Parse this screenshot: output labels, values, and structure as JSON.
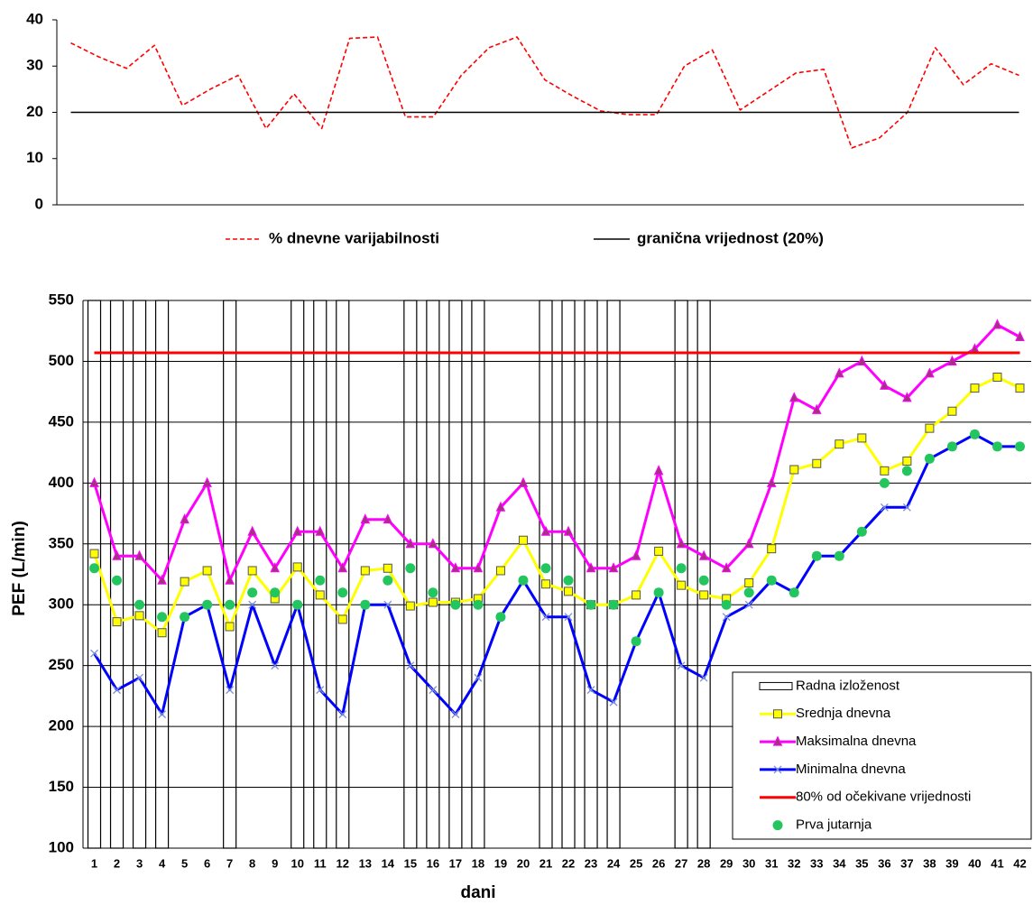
{
  "chart_data": [
    {
      "type": "line",
      "ylim": [
        0,
        40
      ],
      "yticks": [
        0,
        10,
        20,
        30,
        40
      ],
      "grid": false,
      "legend": "bottom",
      "series": [
        {
          "name": "% dnevne varijabilnosti",
          "color": "#ff0000",
          "dash": true,
          "values": [
            35,
            32,
            29.5,
            34.5,
            21.5,
            25,
            28,
            16.5,
            24,
            16.5,
            36,
            36.3,
            19,
            19,
            28,
            34,
            36.3,
            27,
            23.5,
            20.3,
            19.5,
            19.5,
            30,
            33.5,
            20.5,
            24.5,
            28.5,
            29.3,
            12.3,
            14.5,
            20,
            34,
            26,
            30.5,
            28
          ]
        },
        {
          "name": "granična vrijednost (20%)",
          "color": "#000000",
          "dash": false,
          "values": [
            20,
            20,
            20,
            20,
            20,
            20,
            20,
            20,
            20,
            20,
            20,
            20,
            20,
            20,
            20,
            20,
            20,
            20,
            20,
            20,
            20,
            20,
            20,
            20,
            20,
            20,
            20,
            20,
            20,
            20,
            20,
            20,
            20,
            20,
            20
          ]
        }
      ]
    },
    {
      "type": "line",
      "x_label": "dani",
      "y_label": "PEF (L/min)",
      "ylim": [
        100,
        550
      ],
      "yticks": [
        100,
        150,
        200,
        250,
        300,
        350,
        400,
        450,
        500,
        550
      ],
      "grid": true,
      "legend": "lower right",
      "categories": [
        "1",
        "2",
        "3",
        "4",
        "5",
        "6",
        "7",
        "8",
        "9",
        "10",
        "11",
        "12",
        "13",
        "14",
        "15",
        "16",
        "17",
        "18",
        "19",
        "20",
        "21",
        "22",
        "23",
        "24",
        "25",
        "26",
        "27",
        "28",
        "29",
        "30",
        "31",
        "32",
        "33",
        "34",
        "35",
        "36",
        "37",
        "38",
        "39",
        "40",
        "41",
        "42"
      ],
      "series": [
        {
          "name": "Radna izloženost",
          "type": "bar",
          "color": "#000000",
          "values": [
            550,
            550,
            550,
            550,
            null,
            null,
            550,
            null,
            null,
            550,
            550,
            550,
            null,
            null,
            550,
            550,
            550,
            550,
            null,
            null,
            550,
            550,
            550,
            550,
            null,
            null,
            550,
            550,
            null,
            null,
            null,
            null,
            null,
            null,
            null,
            null,
            null,
            null,
            null,
            null,
            null,
            null
          ]
        },
        {
          "name": "Srednja dnevna",
          "type": "line",
          "color": "#ffff00",
          "marker": "square",
          "values": [
            342,
            286,
            291,
            277,
            319,
            328,
            282,
            328,
            305,
            331,
            308,
            288,
            328,
            330,
            299,
            302,
            302,
            305,
            328,
            353,
            317,
            311,
            300,
            300,
            308,
            344,
            316,
            308,
            305,
            318,
            346,
            411,
            416,
            432,
            437,
            410,
            418,
            445,
            459,
            478,
            487,
            478
          ]
        },
        {
          "name": "Maksimalna dnevna",
          "type": "line",
          "color": "#ff00ff",
          "marker": "triangle",
          "values": [
            400,
            340,
            340,
            320,
            370,
            400,
            320,
            360,
            330,
            360,
            360,
            330,
            370,
            370,
            350,
            350,
            330,
            330,
            380,
            400,
            360,
            360,
            330,
            330,
            340,
            410,
            350,
            340,
            330,
            350,
            400,
            470,
            460,
            490,
            500,
            480,
            470,
            490,
            500,
            510,
            530,
            520
          ]
        },
        {
          "name": "Minimalna dnevna",
          "type": "line",
          "color": "#0000ff",
          "marker": "x",
          "values": [
            260,
            230,
            240,
            210,
            290,
            300,
            230,
            300,
            250,
            300,
            230,
            210,
            300,
            300,
            250,
            230,
            210,
            240,
            290,
            320,
            290,
            290,
            230,
            220,
            270,
            310,
            250,
            240,
            290,
            300,
            320,
            310,
            340,
            340,
            360,
            380,
            380,
            420,
            430,
            440,
            430,
            430
          ]
        },
        {
          "name": "80% od očekivane vrijednosti",
          "type": "line",
          "color": "#ff0000",
          "values": [
            507,
            507,
            507,
            507,
            507,
            507,
            507,
            507,
            507,
            507,
            507,
            507,
            507,
            507,
            507,
            507,
            507,
            507,
            507,
            507,
            507,
            507,
            507,
            507,
            507,
            507,
            507,
            507,
            507,
            507,
            507,
            507,
            507,
            507,
            507,
            507,
            507,
            507,
            507,
            507,
            507,
            507
          ]
        },
        {
          "name": "Prva jutarnja",
          "type": "scatter",
          "color": "#22c55e",
          "marker": "circle",
          "values": [
            330,
            320,
            300,
            290,
            290,
            300,
            300,
            310,
            310,
            300,
            320,
            310,
            300,
            320,
            330,
            310,
            300,
            300,
            290,
            320,
            330,
            320,
            300,
            300,
            270,
            310,
            330,
            320,
            300,
            310,
            320,
            310,
            340,
            340,
            360,
            400,
            410,
            420,
            430,
            440,
            430,
            430
          ]
        }
      ]
    }
  ]
}
